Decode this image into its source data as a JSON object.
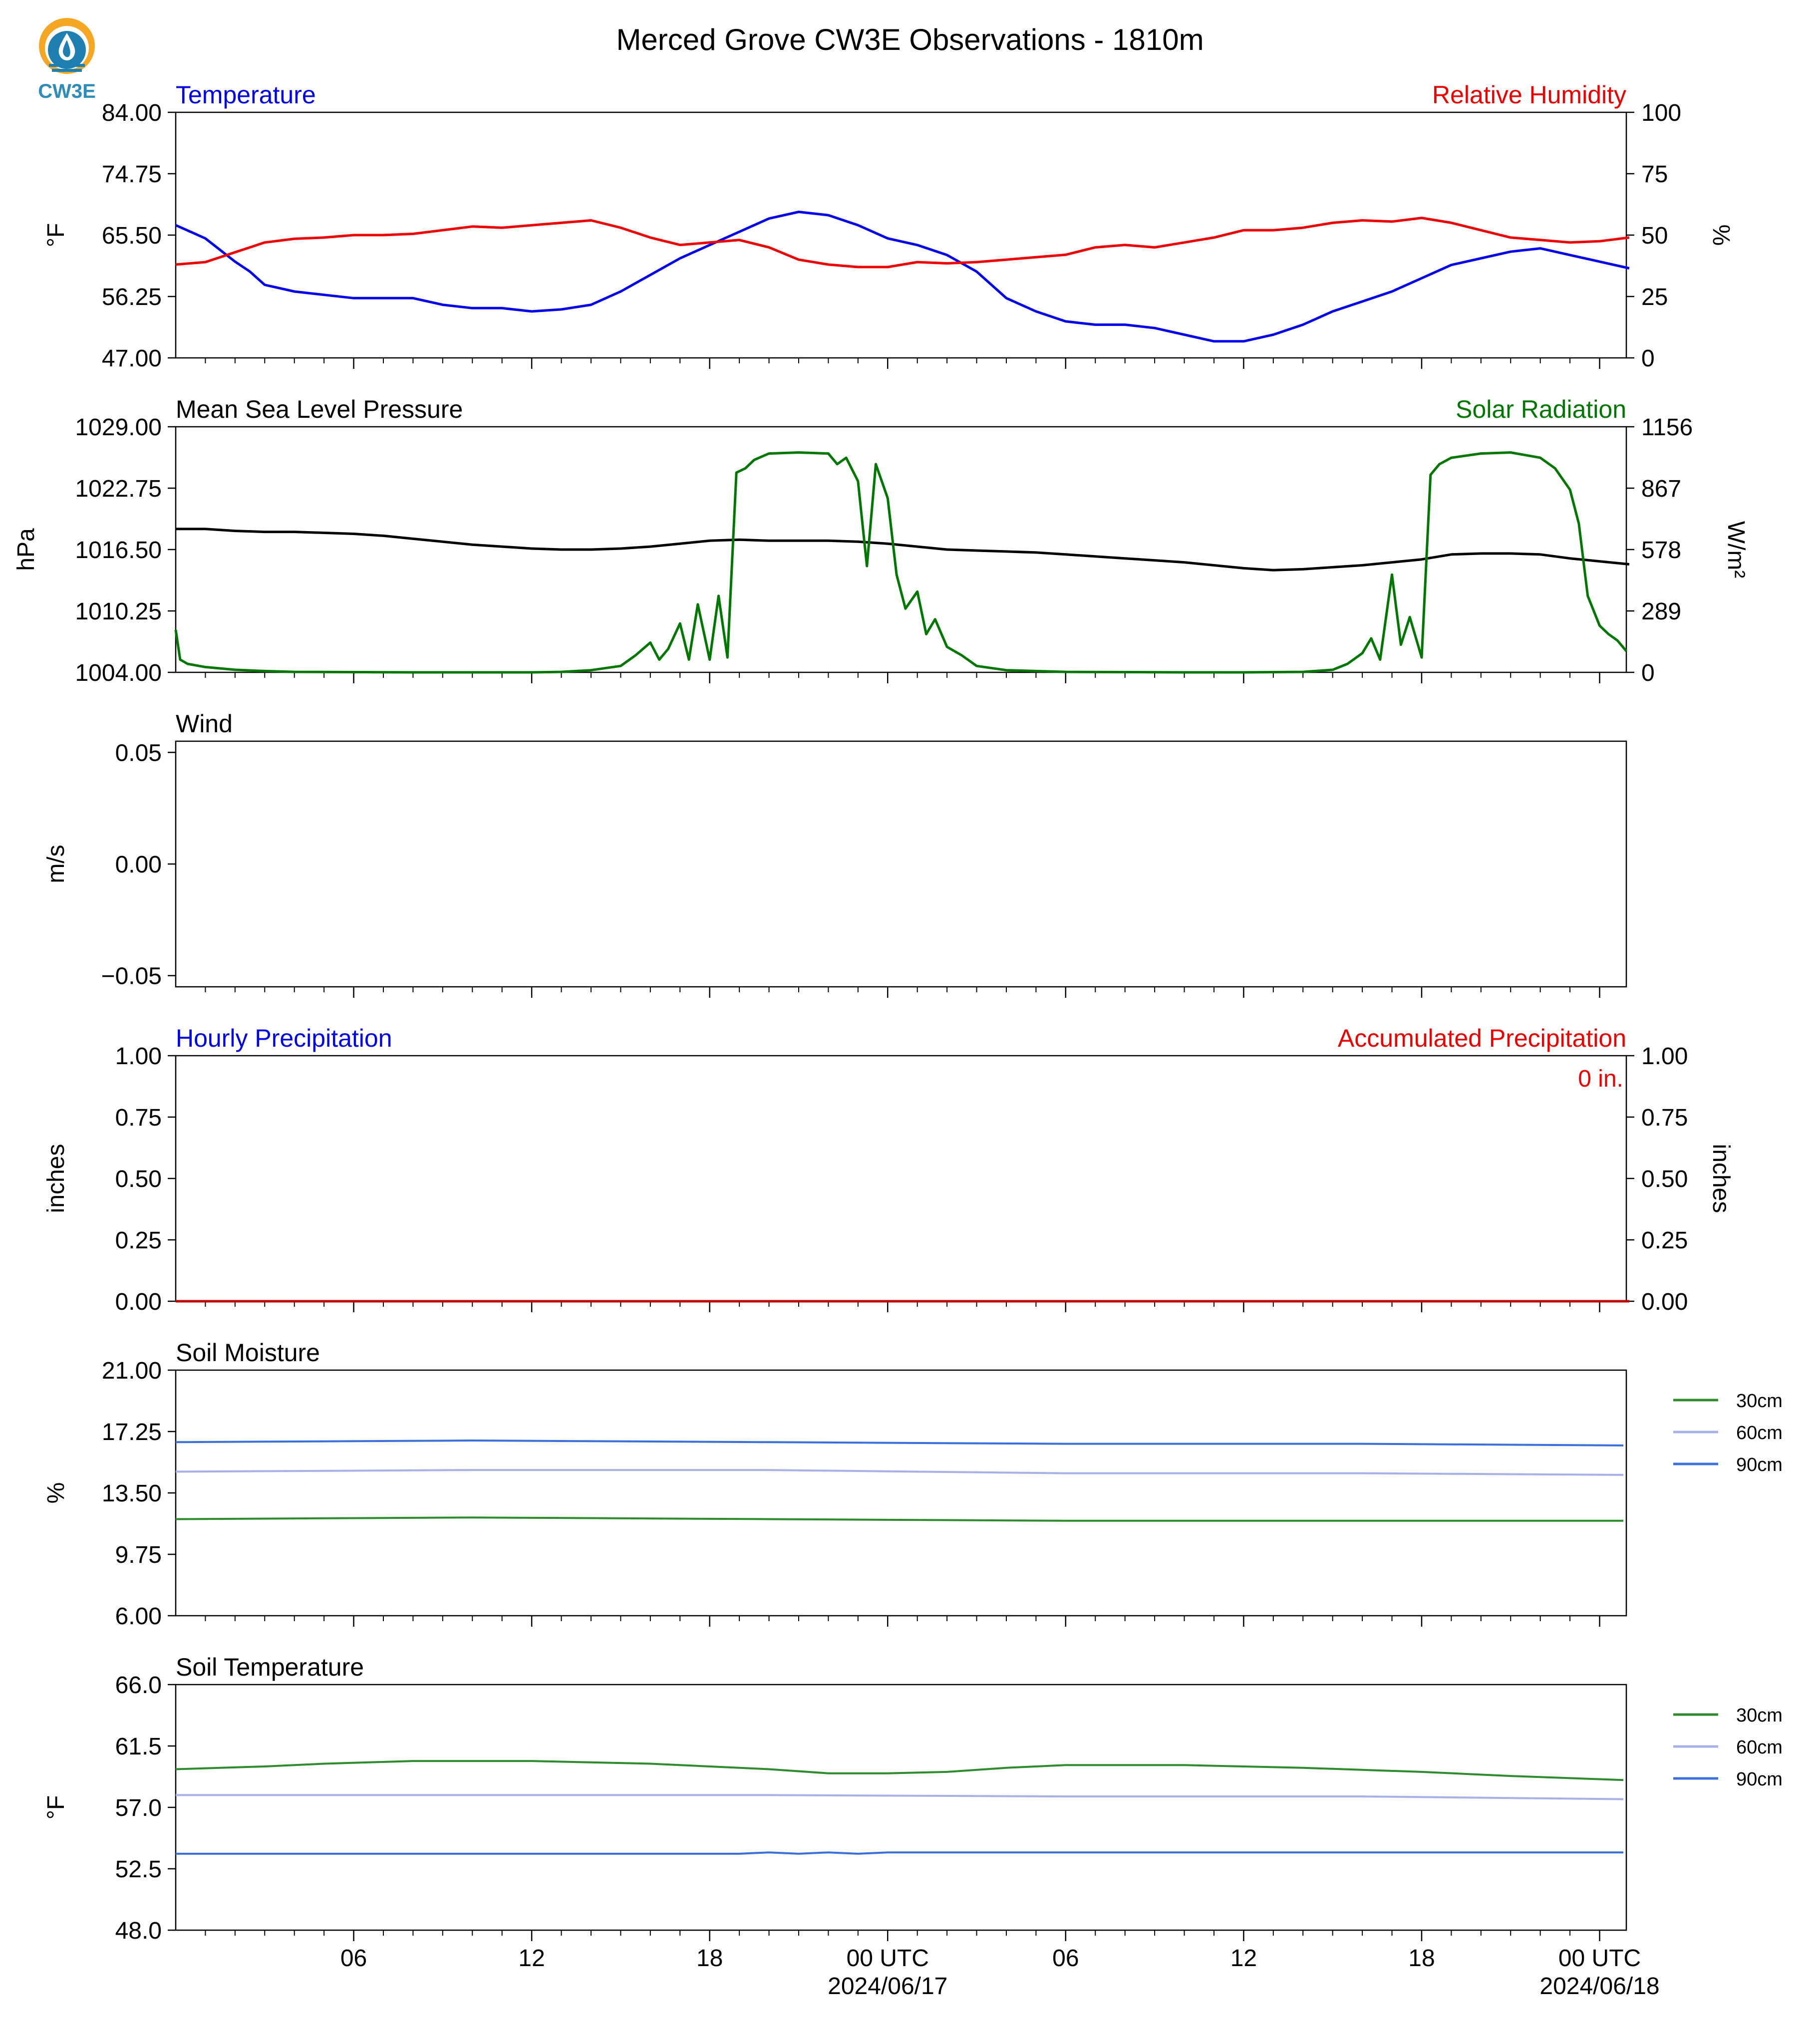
{
  "title": "Merced Grove CW3E Observations - 1810m",
  "logo": {
    "text": "CW3E",
    "icon": "cw3e-droplet-logo-icon",
    "colors": {
      "orange": "#F5A623",
      "blue": "#1E7FB0",
      "text": "#2E8CB8"
    }
  },
  "x_axis": {
    "ticks": [
      {
        "h": 6,
        "label": "06"
      },
      {
        "h": 12,
        "label": "12"
      },
      {
        "h": 18,
        "label": "18"
      },
      {
        "h": 24,
        "label": "00 UTC",
        "sublabel": "2024/06/17"
      },
      {
        "h": 30,
        "label": "06"
      },
      {
        "h": 36,
        "label": "12"
      },
      {
        "h": 42,
        "label": "18"
      },
      {
        "h": 48,
        "label": "00 UTC",
        "sublabel": "2024/06/18"
      }
    ]
  },
  "chart_data": [
    {
      "type": "line",
      "id": "temperature-rh",
      "title_left": "Temperature",
      "title_right": "Relative Humidity",
      "ylabel": "°F",
      "ylabel_right": "%",
      "ylim": [
        47,
        84
      ],
      "ylim_right": [
        0,
        100
      ],
      "yticks": [
        "84.00",
        "74.75",
        "65.50",
        "56.25",
        "47.00"
      ],
      "yticks_right": [
        "100",
        "75",
        "50",
        "25",
        "0"
      ],
      "series": [
        {
          "name": "Temperature",
          "color": "#0000EE",
          "axis": "left",
          "x": [
            0,
            1,
            2,
            2.5,
            3,
            4,
            5,
            6,
            7,
            8,
            9,
            10,
            11,
            12,
            13,
            14,
            15,
            16,
            17,
            18,
            19,
            20,
            21,
            22,
            23,
            24,
            25,
            26,
            27,
            28,
            29,
            30,
            31,
            32,
            33,
            34,
            35,
            36,
            37,
            38,
            39,
            40,
            41,
            42,
            43,
            44,
            45,
            46,
            47,
            48,
            49
          ],
          "y": [
            67,
            65,
            61.5,
            60,
            58,
            57,
            56.5,
            56,
            56,
            56,
            55,
            54.5,
            54.5,
            54,
            54.3,
            55,
            57,
            59.5,
            62,
            64,
            66,
            68,
            69,
            68.5,
            67,
            65,
            64,
            62.5,
            60,
            56,
            54,
            52.5,
            52,
            52,
            51.5,
            50.5,
            49.5,
            49.5,
            50.5,
            52,
            54,
            55.5,
            57,
            59,
            61,
            62,
            63,
            63.5,
            62.5,
            61.5,
            60.5
          ]
        },
        {
          "name": "Relative Humidity",
          "color": "#EE0000",
          "axis": "right",
          "x": [
            0,
            1,
            2,
            3,
            4,
            5,
            6,
            7,
            8,
            9,
            10,
            11,
            12,
            13,
            14,
            15,
            16,
            17,
            18,
            19,
            20,
            21,
            22,
            23,
            24,
            25,
            26,
            27,
            28,
            29,
            30,
            31,
            32,
            33,
            34,
            35,
            36,
            37,
            38,
            39,
            40,
            41,
            42,
            43,
            44,
            45,
            46,
            47,
            48,
            49
          ],
          "y": [
            38,
            39,
            43,
            47,
            48.5,
            49,
            50,
            50,
            50.5,
            52,
            53.5,
            53,
            54,
            55,
            56,
            53,
            49,
            46,
            47,
            48,
            45,
            40,
            38,
            37,
            37,
            39,
            38.5,
            39,
            40,
            41,
            42,
            45,
            46,
            45,
            47,
            49,
            52,
            52,
            53,
            55,
            56,
            55.5,
            57,
            55,
            52,
            49,
            48,
            47,
            47.5,
            49
          ]
        }
      ]
    },
    {
      "type": "line",
      "id": "pressure-solar",
      "title_left": "Mean Sea Level Pressure",
      "title_right": "Solar Radiation",
      "ylabel": "hPa",
      "ylabel_right": "W/m²",
      "ylim": [
        1004,
        1029
      ],
      "ylim_right": [
        0,
        1156
      ],
      "yticks": [
        "1029.00",
        "1022.75",
        "1016.50",
        "1010.25",
        "1004.00"
      ],
      "yticks_right": [
        "1156",
        "867",
        "578",
        "289",
        "0"
      ],
      "series": [
        {
          "name": "Mean Sea Level Pressure",
          "color": "#000000",
          "axis": "left",
          "x": [
            0,
            1,
            2,
            3,
            4,
            5,
            6,
            7,
            8,
            9,
            10,
            11,
            12,
            13,
            14,
            15,
            16,
            17,
            18,
            19,
            20,
            21,
            22,
            23,
            24,
            25,
            26,
            27,
            28,
            29,
            30,
            31,
            32,
            33,
            34,
            35,
            36,
            37,
            38,
            39,
            40,
            41,
            42,
            43,
            44,
            45,
            46,
            47,
            48,
            49
          ],
          "y": [
            1018.6,
            1018.6,
            1018.4,
            1018.3,
            1018.3,
            1018.2,
            1018.1,
            1017.9,
            1017.6,
            1017.3,
            1017.0,
            1016.8,
            1016.6,
            1016.5,
            1016.5,
            1016.6,
            1016.8,
            1017.1,
            1017.4,
            1017.5,
            1017.4,
            1017.4,
            1017.4,
            1017.3,
            1017.1,
            1016.8,
            1016.5,
            1016.4,
            1016.3,
            1016.2,
            1016.0,
            1015.8,
            1015.6,
            1015.4,
            1015.2,
            1014.9,
            1014.6,
            1014.4,
            1014.5,
            1014.7,
            1014.9,
            1015.2,
            1015.5,
            1016.0,
            1016.1,
            1016.1,
            1016.0,
            1015.6,
            1015.3,
            1015.0
          ]
        },
        {
          "name": "Solar Radiation",
          "color": "#007700",
          "axis": "right",
          "x": [
            0,
            0.15,
            0.4,
            1,
            2,
            3,
            4,
            8,
            12,
            13,
            14,
            15,
            15.5,
            16,
            16.3,
            16.6,
            17,
            17.3,
            17.6,
            18,
            18.3,
            18.6,
            18.9,
            19.2,
            19.5,
            20,
            21,
            22,
            22.3,
            22.6,
            23,
            23.3,
            23.6,
            24,
            24.3,
            24.6,
            25,
            25.3,
            25.6,
            26,
            26.5,
            27,
            28,
            30,
            34,
            36,
            38,
            39,
            39.5,
            40,
            40.3,
            40.6,
            41,
            41.3,
            41.6,
            42,
            42.3,
            42.6,
            43,
            44,
            45,
            46,
            46.5,
            47,
            47.3,
            47.6,
            48,
            48.3,
            48.6,
            48.9
          ],
          "y": [
            200,
            60,
            40,
            25,
            12,
            6,
            2,
            0,
            0,
            2,
            10,
            30,
            80,
            140,
            60,
            110,
            230,
            60,
            320,
            60,
            360,
            70,
            940,
            960,
            1000,
            1030,
            1035,
            1030,
            980,
            1010,
            900,
            500,
            980,
            820,
            460,
            300,
            380,
            180,
            250,
            120,
            80,
            30,
            10,
            2,
            0,
            0,
            2,
            12,
            40,
            90,
            160,
            60,
            460,
            130,
            260,
            70,
            930,
            980,
            1010,
            1030,
            1035,
            1010,
            960,
            860,
            700,
            360,
            220,
            180,
            150,
            100
          ]
        }
      ]
    },
    {
      "type": "line",
      "id": "wind",
      "title_left": "Wind",
      "ylabel": "m/s",
      "ylim": [
        -0.055,
        0.055
      ],
      "yticks": [
        "0.05",
        "0.00",
        "−0.05"
      ],
      "series": []
    },
    {
      "type": "line",
      "id": "precipitation",
      "title_left": "Hourly Precipitation",
      "title_right": "Accumulated Precipitation",
      "annotation": "0 in.",
      "ylabel": "inches",
      "ylabel_right": "inches",
      "ylim": [
        0,
        1
      ],
      "ylim_right": [
        0,
        1
      ],
      "yticks": [
        "1.00",
        "0.75",
        "0.50",
        "0.25",
        "0.00"
      ],
      "yticks_right": [
        "1.00",
        "0.75",
        "0.50",
        "0.25",
        "0.00"
      ],
      "series": [
        {
          "name": "Hourly Precipitation",
          "color": "#0000EE",
          "axis": "left",
          "x": [
            0,
            49
          ],
          "y": [
            0,
            0
          ]
        },
        {
          "name": "Accumulated Precipitation",
          "color": "#C00000",
          "axis": "right",
          "x": [
            0,
            49
          ],
          "y": [
            0,
            0
          ]
        }
      ]
    },
    {
      "type": "line",
      "id": "soil-moisture",
      "title_left": "Soil Moisture",
      "ylabel": "%",
      "ylim": [
        6,
        21
      ],
      "yticks": [
        "21.00",
        "17.25",
        "13.50",
        "9.75",
        "6.00"
      ],
      "legend": "outside-right",
      "series": [
        {
          "name": "30cm",
          "color": "#2E8B2E",
          "x": [
            0,
            10,
            20,
            30,
            40,
            48.8
          ],
          "y": [
            11.9,
            12.0,
            11.9,
            11.8,
            11.8,
            11.8
          ]
        },
        {
          "name": "60cm",
          "color": "#A8B0E8",
          "x": [
            0,
            10,
            20,
            30,
            40,
            48.8
          ],
          "y": [
            14.8,
            14.9,
            14.9,
            14.7,
            14.7,
            14.6
          ]
        },
        {
          "name": "90cm",
          "color": "#3B6FDE",
          "x": [
            0,
            10,
            20,
            30,
            40,
            48.8
          ],
          "y": [
            16.6,
            16.7,
            16.6,
            16.5,
            16.5,
            16.4
          ]
        }
      ]
    },
    {
      "type": "line",
      "id": "soil-temperature",
      "title_left": "Soil Temperature",
      "ylabel": "°F",
      "ylim": [
        48,
        66
      ],
      "yticks": [
        "66.0",
        "61.5",
        "57.0",
        "52.5",
        "48.0"
      ],
      "legend": "outside-right",
      "series": [
        {
          "name": "30cm",
          "color": "#2E8B2E",
          "x": [
            0,
            3,
            5,
            8,
            12,
            16,
            20,
            22,
            24,
            26,
            28,
            30,
            34,
            38,
            42,
            45,
            48.8
          ],
          "y": [
            59.8,
            60.0,
            60.2,
            60.4,
            60.4,
            60.2,
            59.8,
            59.5,
            59.5,
            59.6,
            59.9,
            60.1,
            60.1,
            59.9,
            59.6,
            59.3,
            59.0
          ]
        },
        {
          "name": "60cm",
          "color": "#A8B0E8",
          "x": [
            0,
            10,
            20,
            30,
            40,
            48.8
          ],
          "y": [
            57.9,
            57.9,
            57.9,
            57.8,
            57.8,
            57.6
          ]
        },
        {
          "name": "90cm",
          "color": "#3B6FDE",
          "x": [
            0,
            10,
            19,
            20,
            21,
            22,
            23,
            24,
            30,
            40,
            48.8
          ],
          "y": [
            53.6,
            53.6,
            53.6,
            53.7,
            53.6,
            53.7,
            53.6,
            53.7,
            53.7,
            53.7,
            53.7
          ]
        }
      ]
    }
  ]
}
